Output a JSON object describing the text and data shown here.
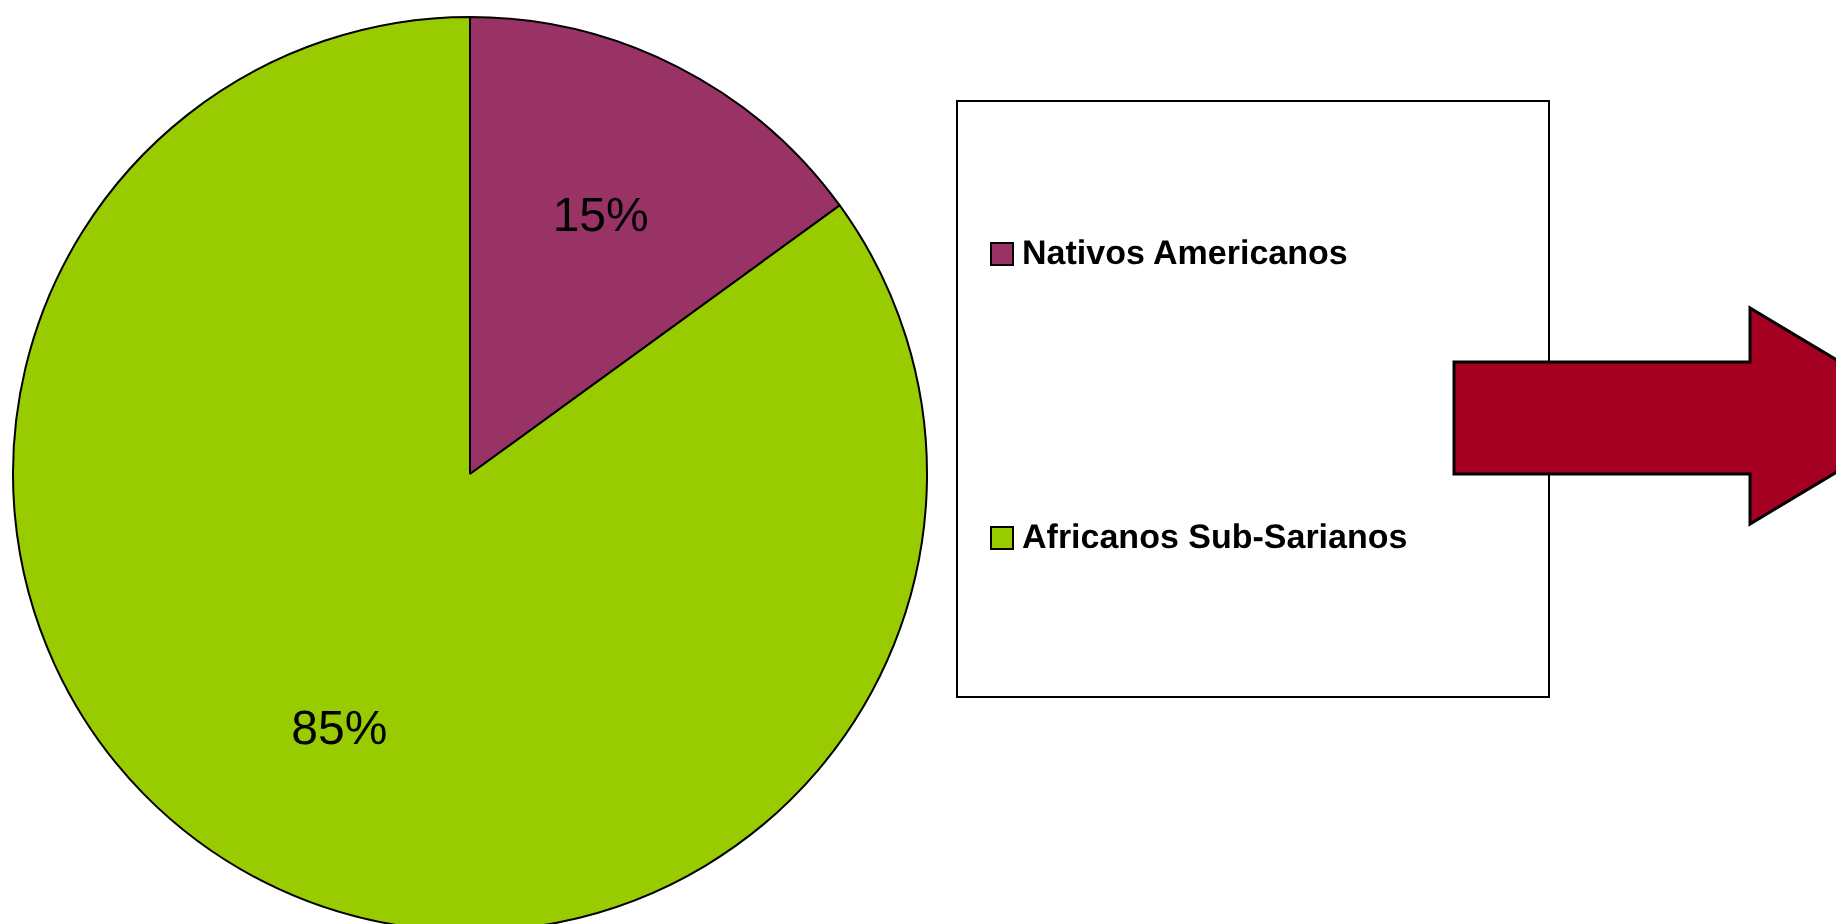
{
  "chart_data": {
    "type": "pie",
    "categories": [
      "Nativos Americanos",
      "Africanos Sub-Sarianos"
    ],
    "values": [
      15,
      85
    ],
    "colors": [
      "#993366",
      "#99cc00"
    ],
    "value_labels": [
      "15%",
      "85%"
    ],
    "legend": "right"
  }
}
